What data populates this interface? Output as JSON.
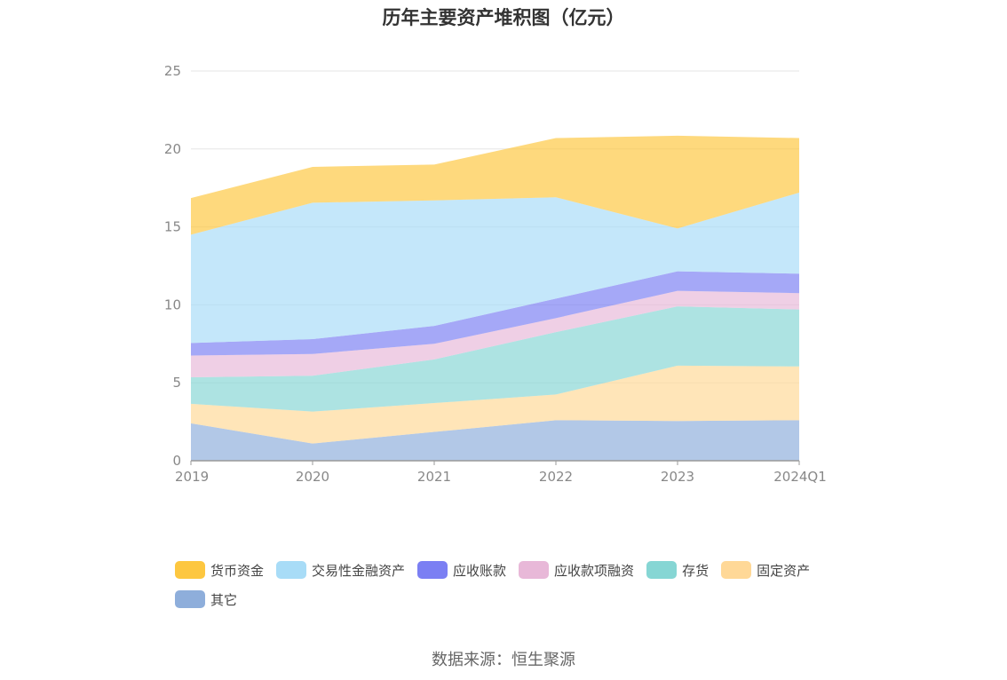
{
  "title": "历年主要资产堆积图（亿元）",
  "source": "数据来源：恒生聚源",
  "chart_data": {
    "type": "area",
    "stacked": true,
    "title": "历年主要资产堆积图（亿元）",
    "xlabel": "",
    "ylabel": "",
    "categories": [
      "2019",
      "2020",
      "2021",
      "2022",
      "2023",
      "2024Q1"
    ],
    "ylim": [
      0,
      25
    ],
    "yticks": [
      0,
      5,
      10,
      15,
      20,
      25
    ],
    "grid": true,
    "legend_position": "bottom",
    "series": [
      {
        "name": "其它",
        "color": "#8eaedb",
        "values": [
          2.4,
          1.1,
          1.85,
          2.6,
          2.55,
          2.6
        ]
      },
      {
        "name": "固定资产",
        "color": "#ffd897",
        "values": [
          1.25,
          2.05,
          1.85,
          1.65,
          3.55,
          3.45
        ]
      },
      {
        "name": "存货",
        "color": "#86d6d4",
        "values": [
          1.7,
          2.3,
          2.8,
          4.0,
          3.8,
          3.65
        ]
      },
      {
        "name": "应收款项融资",
        "color": "#e8b8d8",
        "values": [
          1.4,
          1.4,
          1.0,
          0.9,
          1.0,
          1.05
        ]
      },
      {
        "name": "应收账款",
        "color": "#7b7ff3",
        "values": [
          0.8,
          0.95,
          1.15,
          1.25,
          1.25,
          1.25
        ]
      },
      {
        "name": "交易性金融资产",
        "color": "#a8dcf7",
        "values": [
          6.95,
          8.75,
          8.05,
          6.5,
          2.75,
          5.2
        ]
      },
      {
        "name": "货币资金",
        "color": "#fdc740",
        "values": [
          2.35,
          2.3,
          2.3,
          3.8,
          5.95,
          3.5
        ]
      }
    ]
  },
  "legend": {
    "items": [
      {
        "label": "货币资金",
        "color": "#fdc740"
      },
      {
        "label": "交易性金融资产",
        "color": "#a8dcf7"
      },
      {
        "label": "应收账款",
        "color": "#7b7ff3"
      },
      {
        "label": "应收款项融资",
        "color": "#e8b8d8"
      },
      {
        "label": "存货",
        "color": "#86d6d4"
      },
      {
        "label": "固定资产",
        "color": "#ffd897"
      },
      {
        "label": "其它",
        "color": "#8eaedb"
      }
    ]
  }
}
